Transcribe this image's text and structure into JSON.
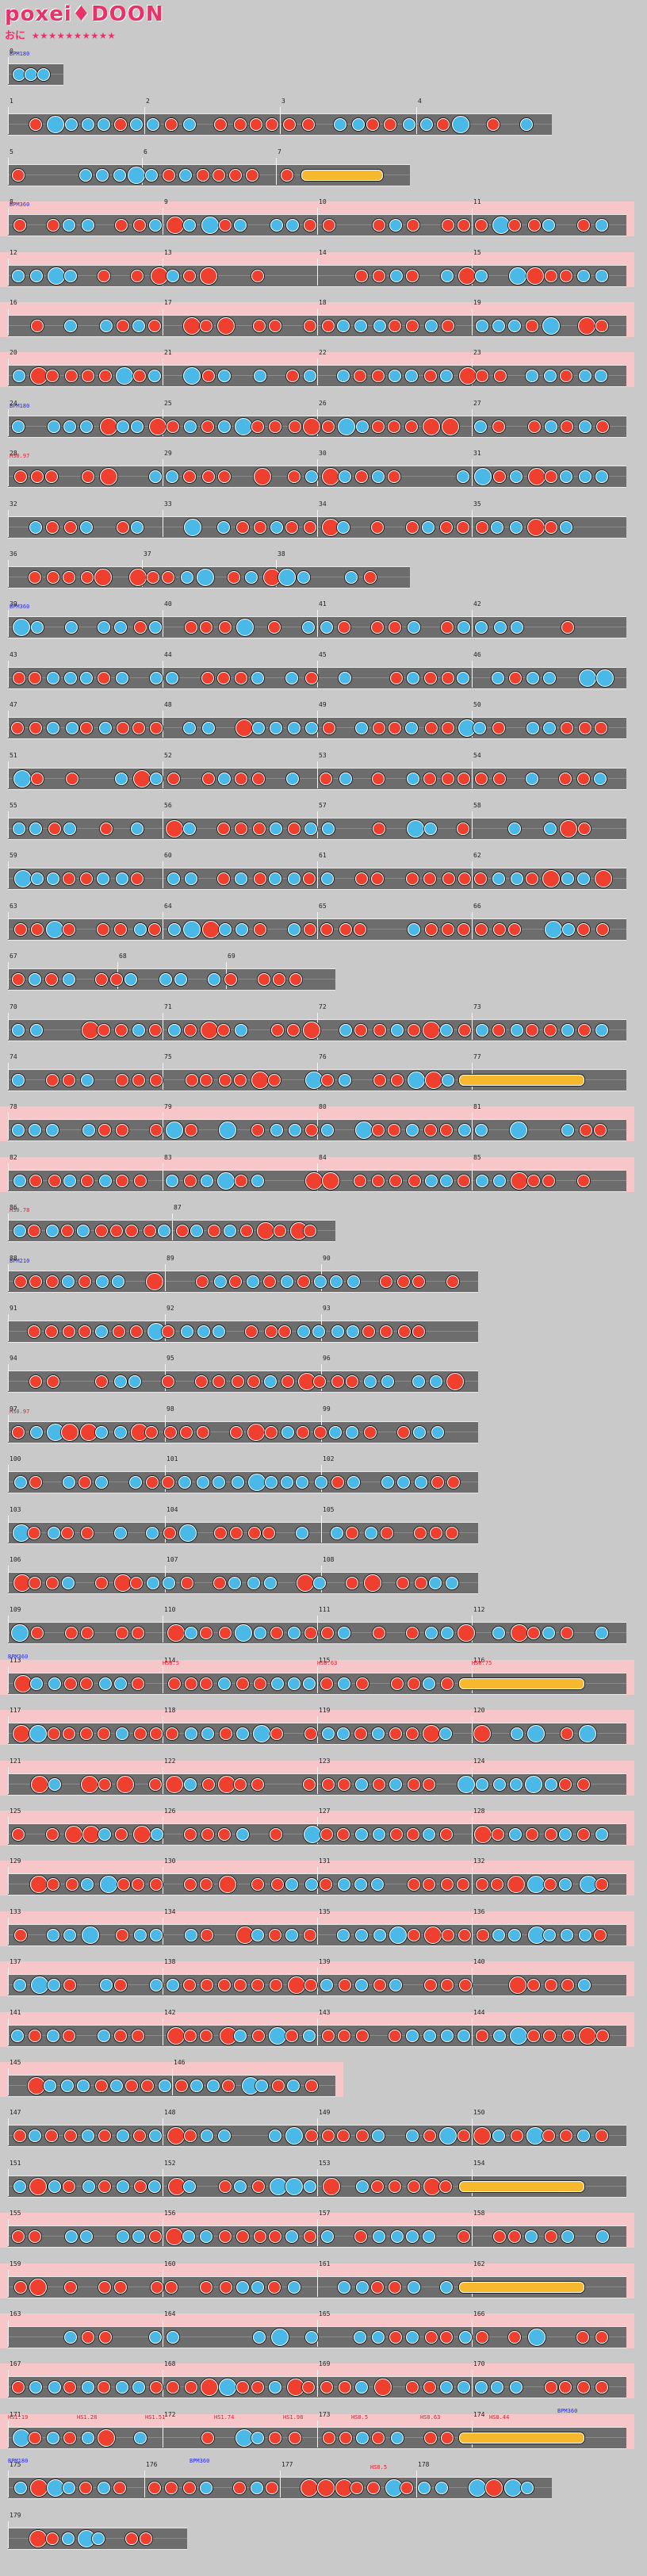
{
  "header": {
    "title": "poxei♦DOON",
    "difficulty_label": "おに",
    "stars": "★★★★★★★★★★",
    "accent_color": "#e8336a"
  },
  "colors": {
    "don": "#ef3f2e",
    "ka": "#4ab9e8",
    "roll": "#f6b92e",
    "lane": "#6d6d6d",
    "gogo_background": "#f7c6c9"
  },
  "note_kinds": [
    "don",
    "ka",
    "big-don",
    "big-ka",
    "roll"
  ],
  "rows": [
    {
      "bars": [
        0
      ],
      "width": 0.09,
      "events": [
        "BPM180"
      ]
    },
    {
      "bars": [
        1,
        2,
        3,
        4
      ],
      "width": 0.88
    },
    {
      "bars": [
        5,
        6,
        7
      ],
      "width": 0.65,
      "roll": true
    },
    {
      "bars": [
        8,
        9,
        10,
        11
      ],
      "width": 1.0,
      "gogo": true,
      "events": [
        "BPM360"
      ]
    },
    {
      "bars": [
        12,
        13,
        14,
        15
      ],
      "width": 1.0,
      "gogo": true
    },
    {
      "bars": [
        16,
        17,
        18,
        19
      ],
      "width": 1.0,
      "gogo": true
    },
    {
      "bars": [
        20,
        21,
        22,
        23
      ],
      "width": 1.0,
      "gogo": true
    },
    {
      "bars": [
        24,
        25,
        26,
        27
      ],
      "width": 1.0,
      "events": [
        "BPM180"
      ]
    },
    {
      "bars": [
        28,
        29,
        30,
        31
      ],
      "width": 1.0,
      "events": [
        "HS0.97"
      ]
    },
    {
      "bars": [
        32,
        33,
        34,
        35
      ],
      "width": 1.0
    },
    {
      "bars": [
        36,
        37,
        38
      ],
      "width": 0.65
    },
    {
      "bars": [
        39,
        40,
        41,
        42
      ],
      "width": 1.0,
      "events": [
        "BPM360"
      ]
    },
    {
      "bars": [
        43,
        44,
        45,
        46
      ],
      "width": 1.0
    },
    {
      "bars": [
        47,
        48,
        49,
        50
      ],
      "width": 1.0
    },
    {
      "bars": [
        51,
        52,
        53,
        54
      ],
      "width": 1.0
    },
    {
      "bars": [
        55,
        56,
        57,
        58
      ],
      "width": 1.0
    },
    {
      "bars": [
        59,
        60,
        61,
        62
      ],
      "width": 1.0
    },
    {
      "bars": [
        63,
        64,
        65,
        66
      ],
      "width": 1.0
    },
    {
      "bars": [
        67,
        68,
        69
      ],
      "width": 0.53
    },
    {
      "bars": [
        70,
        71,
        72,
        73
      ],
      "width": 1.0
    },
    {
      "bars": [
        74,
        75,
        76,
        77
      ],
      "width": 1.0,
      "roll": true
    },
    {
      "bars": [
        78,
        79,
        80,
        81
      ],
      "width": 1.0,
      "gogo": true
    },
    {
      "bars": [
        82,
        83,
        84,
        85
      ],
      "width": 1.0,
      "gogo": true
    },
    {
      "bars": [
        86,
        87
      ],
      "width": 0.53,
      "events": [
        "HS0.78"
      ]
    },
    {
      "bars": [
        88,
        89,
        90
      ],
      "width": 0.76,
      "events": [
        "BPM210"
      ]
    },
    {
      "bars": [
        91,
        92,
        93
      ],
      "width": 0.76
    },
    {
      "bars": [
        94,
        95,
        96
      ],
      "width": 0.76
    },
    {
      "bars": [
        97,
        98,
        99
      ],
      "width": 0.76,
      "events": [
        "HS0.97"
      ]
    },
    {
      "bars": [
        100,
        101,
        102
      ],
      "width": 0.76
    },
    {
      "bars": [
        103,
        104,
        105
      ],
      "width": 0.76
    },
    {
      "bars": [
        106,
        107,
        108
      ],
      "width": 0.76
    },
    {
      "bars": [
        109,
        110,
        111,
        112
      ],
      "width": 1.0
    },
    {
      "bars": [
        113,
        114,
        115,
        116
      ],
      "width": 1.0,
      "gogo": true,
      "roll": true,
      "events": [
        "BPM360",
        "HS0.5",
        "HS0.63",
        "HS0.75"
      ]
    },
    {
      "bars": [
        117,
        118,
        119,
        120
      ],
      "width": 1.0,
      "gogo": true
    },
    {
      "bars": [
        121,
        122,
        123,
        124
      ],
      "width": 1.0,
      "gogo": true
    },
    {
      "bars": [
        125,
        126,
        127,
        128
      ],
      "width": 1.0,
      "gogo": true
    },
    {
      "bars": [
        129,
        130,
        131,
        132
      ],
      "width": 1.0,
      "gogo": true
    },
    {
      "bars": [
        133,
        134,
        135,
        136
      ],
      "width": 1.0,
      "gogo": true
    },
    {
      "bars": [
        137,
        138,
        139,
        140
      ],
      "width": 1.0,
      "gogo": true
    },
    {
      "bars": [
        141,
        142,
        143,
        144
      ],
      "width": 1.0,
      "gogo": true
    },
    {
      "bars": [
        145,
        146
      ],
      "width": 0.53,
      "gogo": true
    },
    {
      "bars": [
        147,
        148,
        149,
        150
      ],
      "width": 1.0
    },
    {
      "bars": [
        151,
        152,
        153,
        154
      ],
      "width": 1.0,
      "roll": true
    },
    {
      "bars": [
        155,
        156,
        157,
        158
      ],
      "width": 1.0,
      "gogo": true
    },
    {
      "bars": [
        159,
        160,
        161,
        162
      ],
      "width": 1.0,
      "gogo": true,
      "roll": true
    },
    {
      "bars": [
        163,
        164,
        165,
        166
      ],
      "width": 1.0,
      "gogo": true
    },
    {
      "bars": [
        167,
        168,
        169,
        170
      ],
      "width": 1.0,
      "gogo": true
    },
    {
      "bars": [
        171,
        172,
        173,
        174
      ],
      "width": 1.0,
      "gogo": true,
      "roll": true,
      "events": [
        "HS1.19",
        "HS1.28",
        "HS1.51",
        "HS1.74",
        "HS1.98",
        "HS0.5",
        "HS0.63",
        "HS0.44",
        "BPM360"
      ]
    },
    {
      "bars": [
        175,
        176,
        177,
        178
      ],
      "width": 0.88,
      "events": [
        "BPM180",
        "BPM360",
        "HS0.5"
      ]
    },
    {
      "bars": [
        179
      ],
      "width": 0.29
    }
  ]
}
